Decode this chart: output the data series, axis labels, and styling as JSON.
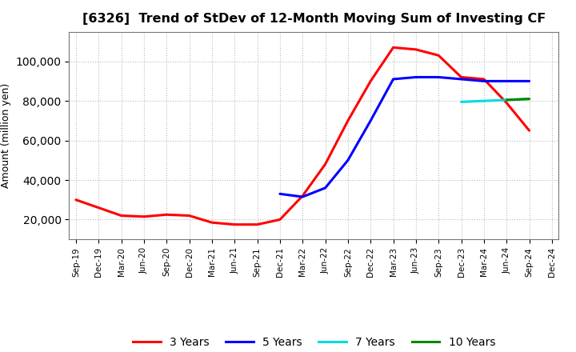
{
  "title": "[6326]  Trend of StDev of 12-Month Moving Sum of Investing CF",
  "ylabel": "Amount (million yen)",
  "background_color": "#ffffff",
  "grid_color": "#bbbbbb",
  "ylim": [
    10000,
    115000
  ],
  "yticks": [
    20000,
    40000,
    60000,
    80000,
    100000
  ],
  "series": {
    "3 Years": {
      "color": "#ff0000",
      "linewidth": 2.2,
      "x": [
        "Sep-19",
        "Dec-19",
        "Mar-20",
        "Jun-20",
        "Sep-20",
        "Dec-20",
        "Mar-21",
        "Jun-21",
        "Sep-21",
        "Dec-21",
        "Mar-22",
        "Jun-22",
        "Sep-22",
        "Dec-22",
        "Mar-23",
        "Jun-23",
        "Sep-23",
        "Dec-23",
        "Mar-24",
        "Jun-24",
        "Sep-24"
      ],
      "y": [
        30000,
        26000,
        22000,
        21500,
        22500,
        22000,
        18500,
        17500,
        17500,
        20000,
        32000,
        48000,
        70000,
        90000,
        107000,
        106000,
        103000,
        92000,
        91000,
        79000,
        65000
      ]
    },
    "5 Years": {
      "color": "#0000ff",
      "linewidth": 2.2,
      "x": [
        "Dec-21",
        "Mar-22",
        "Jun-22",
        "Sep-22",
        "Dec-22",
        "Mar-23",
        "Jun-23",
        "Sep-23",
        "Dec-23",
        "Mar-24",
        "Jun-24",
        "Sep-24"
      ],
      "y": [
        33000,
        31500,
        36000,
        50000,
        70000,
        91000,
        92000,
        92000,
        91000,
        90000,
        90000,
        90000
      ]
    },
    "7 Years": {
      "color": "#00dddd",
      "linewidth": 2.2,
      "x": [
        "Dec-23",
        "Mar-24",
        "Jun-24",
        "Sep-24"
      ],
      "y": [
        79500,
        80000,
        80500,
        81000
      ]
    },
    "10 Years": {
      "color": "#008800",
      "linewidth": 2.2,
      "x": [
        "Jun-24",
        "Sep-24"
      ],
      "y": [
        80500,
        81000
      ]
    }
  },
  "x_labels": [
    "Sep-19",
    "Dec-19",
    "Mar-20",
    "Jun-20",
    "Sep-20",
    "Dec-20",
    "Mar-21",
    "Jun-21",
    "Sep-21",
    "Dec-21",
    "Mar-22",
    "Jun-22",
    "Sep-22",
    "Dec-22",
    "Mar-23",
    "Jun-23",
    "Sep-23",
    "Dec-23",
    "Mar-24",
    "Jun-24",
    "Sep-24",
    "Dec-24"
  ],
  "legend_entries": [
    "3 Years",
    "5 Years",
    "7 Years",
    "10 Years"
  ],
  "legend_colors": [
    "#ff0000",
    "#0000ff",
    "#00dddd",
    "#008800"
  ]
}
